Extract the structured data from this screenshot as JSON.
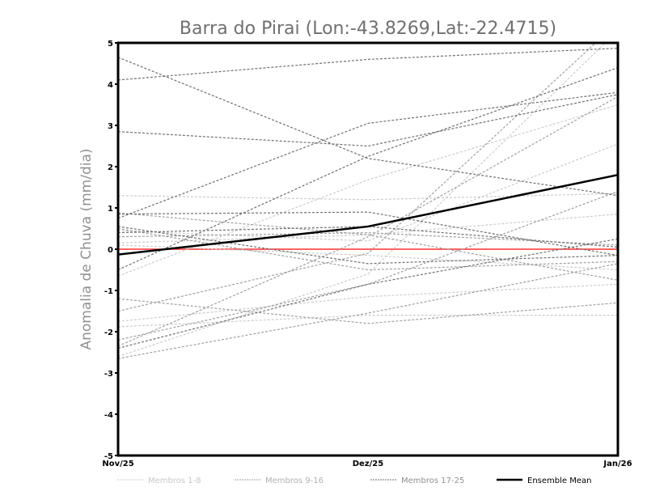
{
  "chart_data": {
    "type": "line",
    "title": "Barra do Pirai (Lon:-43.8269,Lat:-22.4715)",
    "xlabel": "",
    "ylabel": "Anomalia de Chuva (mm/dia)",
    "categories": [
      "Nov/25",
      "Dez/25",
      "Jan/26"
    ],
    "ylim": [
      -5,
      5
    ],
    "yticks": [
      -5,
      -4,
      -3,
      -2,
      -1,
      0,
      1,
      2,
      3,
      4,
      5
    ],
    "legend_position": "bottom",
    "colors": {
      "group1": "#cccccc",
      "group2": "#a0a0a0",
      "group3": "#707070",
      "mean": "#000000",
      "zero": "#ff3030"
    },
    "groups": [
      {
        "name": "Membros 1-8",
        "members": [
          [
            1.3,
            1.2,
            1.35
          ],
          [
            0.15,
            0.35,
            0.85
          ],
          [
            -0.65,
            1.68,
            3.5
          ],
          [
            -1.75,
            -1.15,
            -0.85
          ],
          [
            -1.88,
            -1.6,
            -1.6
          ],
          [
            0.45,
            0.2,
            2.55
          ],
          [
            -2.6,
            -0.6,
            5.3
          ],
          [
            0.1,
            -0.15,
            -0.5
          ]
        ]
      },
      {
        "name": "Membros 9-16",
        "members": [
          [
            0.88,
            0.35,
            -0.75
          ],
          [
            -1.2,
            -1.8,
            -1.3
          ],
          [
            -2.35,
            0.3,
            3.7
          ],
          [
            0.5,
            -0.5,
            -0.3
          ],
          [
            -1.5,
            -0.1,
            5.5
          ],
          [
            -2.2,
            -0.85,
            1.4
          ],
          [
            0.3,
            0.4,
            0.1
          ],
          [
            -2.65,
            -1.55,
            -0.35
          ]
        ]
      },
      {
        "name": "Membros 17-25",
        "members": [
          [
            4.1,
            4.6,
            4.87
          ],
          [
            4.65,
            2.2,
            1.3
          ],
          [
            2.85,
            2.5,
            3.75
          ],
          [
            0.75,
            3.05,
            3.8
          ],
          [
            0.85,
            0.9,
            -0.15
          ],
          [
            0.55,
            -0.35,
            -0.15
          ],
          [
            -0.5,
            2.25,
            4.4
          ],
          [
            0.4,
            0.55,
            0.05
          ],
          [
            -2.4,
            -0.85,
            0.25
          ]
        ]
      }
    ],
    "series": [
      {
        "name": "Ensemble Mean",
        "values": [
          -0.13,
          0.55,
          1.8
        ]
      }
    ],
    "reference_line": 0
  }
}
